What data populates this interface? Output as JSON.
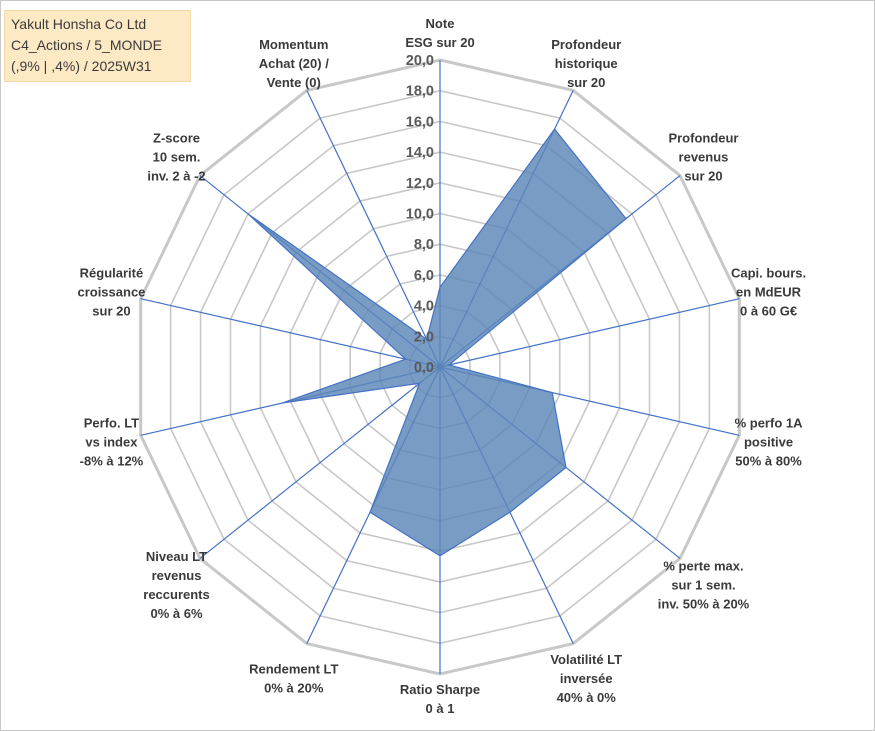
{
  "title_lines": [
    "Yakult Honsha Co Ltd",
    "C4_Actions / 5_MONDE",
    "(,9% | ,4%) / 2025W31"
  ],
  "chart_data": {
    "type": "radar",
    "rmin": 0,
    "rmax": 20,
    "tick_step": 2,
    "tick_labels": [
      "0,0",
      "2,0",
      "4,0",
      "6,0",
      "8,0",
      "10,0",
      "12,0",
      "14,0",
      "16,0",
      "18,0",
      "20,0"
    ],
    "axes": [
      [
        "Note",
        "ESG sur 20"
      ],
      [
        "Profondeur",
        "historique",
        "sur 20"
      ],
      [
        "Profondeur",
        "revenus",
        "sur 20"
      ],
      [
        "Capi. bours.",
        "en MdEUR",
        "0 à 60 G€"
      ],
      [
        "% perfo 1A",
        "positive",
        "50% à 80%"
      ],
      [
        "% perte max.",
        "sur 1 sem.",
        "inv. 50% à 20%"
      ],
      [
        "Volatilité LT",
        "inversée",
        "40% à 0%"
      ],
      [
        "Ratio Sharpe",
        "0 à 1"
      ],
      [
        "Rendement LT",
        "0% à 20%"
      ],
      [
        "Niveau LT",
        "revenus",
        "reccurents",
        "0% à 6%"
      ],
      [
        "Perfo. LT",
        "vs index",
        "-8% à 12%"
      ],
      [
        "Régularité",
        "croissance",
        "sur 20"
      ],
      [
        "Z-score",
        "10 sem.",
        "inv. 2 à -2"
      ],
      [
        "Momentum",
        "Achat (20) /",
        "Vente (0)"
      ]
    ],
    "values": [
      5.2,
      17.2,
      15.5,
      0.6,
      7.5,
      10.5,
      10.5,
      12.3,
      10.5,
      1.7,
      10.5,
      2.3,
      16.0,
      2.0
    ],
    "grid": true,
    "colors": {
      "fill": "#5b86b8",
      "stroke": "#4472c4",
      "grid": "#c8c8c8",
      "spokes": "#4472c4"
    }
  }
}
